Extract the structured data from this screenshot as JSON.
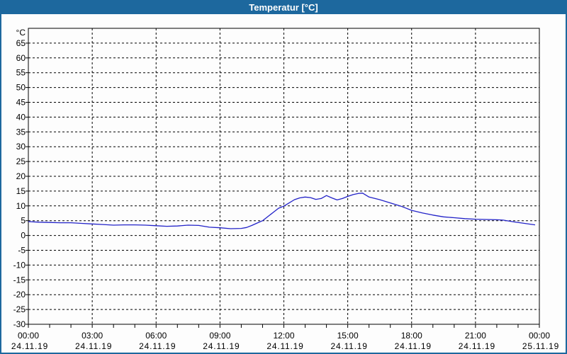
{
  "window": {
    "title": "Temperatur [°C]"
  },
  "colors": {
    "titlebar": "#1d689e",
    "window_border": "#1d689e",
    "plot_border": "#000000",
    "grid": "#000000",
    "line": "#2222c8",
    "background": "#fdfdfd",
    "text": "#000000"
  },
  "chart_data": {
    "type": "line",
    "title": "Temperatur [°C]",
    "y_unit": "°C",
    "ylim": [
      -30,
      70
    ],
    "xlim_hours": [
      0,
      24
    ],
    "grid": "dashed",
    "legend": "none",
    "y_ticks": [
      65,
      60,
      55,
      50,
      45,
      40,
      35,
      30,
      25,
      20,
      15,
      10,
      5,
      0,
      -5,
      -10,
      -15,
      -20,
      -25,
      -30
    ],
    "x_ticks": [
      {
        "hour": 0,
        "time": "00:00",
        "date": "24.11.19"
      },
      {
        "hour": 3,
        "time": "03:00",
        "date": "24.11.19"
      },
      {
        "hour": 6,
        "time": "06:00",
        "date": "24.11.19"
      },
      {
        "hour": 9,
        "time": "09:00",
        "date": "24.11.19"
      },
      {
        "hour": 12,
        "time": "12:00",
        "date": "24.11.19"
      },
      {
        "hour": 15,
        "time": "15:00",
        "date": "24.11.19"
      },
      {
        "hour": 18,
        "time": "18:00",
        "date": "24.11.19"
      },
      {
        "hour": 21,
        "time": "21:00",
        "date": "24.11.19"
      },
      {
        "hour": 24,
        "time": "00:00",
        "date": "25.11.19"
      }
    ],
    "minor_x_tick_every_hours": 1,
    "series": [
      {
        "name": "Temperatur",
        "color": "#2222c8",
        "points": [
          [
            0,
            4.7
          ],
          [
            0.5,
            4.5
          ],
          [
            1,
            4.4
          ],
          [
            1.5,
            4.3
          ],
          [
            2,
            4.3
          ],
          [
            2.5,
            4.1
          ],
          [
            3,
            3.9
          ],
          [
            3.5,
            3.7
          ],
          [
            4,
            3.5
          ],
          [
            4.5,
            3.6
          ],
          [
            5,
            3.6
          ],
          [
            5.5,
            3.5
          ],
          [
            6,
            3.3
          ],
          [
            6.5,
            3.1
          ],
          [
            7,
            3.2
          ],
          [
            7.5,
            3.5
          ],
          [
            8,
            3.4
          ],
          [
            8.5,
            2.8
          ],
          [
            9,
            2.6
          ],
          [
            9.5,
            2.3
          ],
          [
            10,
            2.4
          ],
          [
            10.25,
            2.7
          ],
          [
            10.5,
            3.4
          ],
          [
            10.75,
            4.2
          ],
          [
            11,
            5.0
          ],
          [
            11.5,
            7.8
          ],
          [
            11.75,
            9.2
          ],
          [
            12,
            9.9
          ],
          [
            12.25,
            11.0
          ],
          [
            12.5,
            12.1
          ],
          [
            12.75,
            12.7
          ],
          [
            13,
            13.0
          ],
          [
            13.25,
            12.8
          ],
          [
            13.5,
            12.2
          ],
          [
            13.75,
            12.5
          ],
          [
            14,
            13.5
          ],
          [
            14.25,
            12.7
          ],
          [
            14.5,
            12.0
          ],
          [
            14.75,
            12.5
          ],
          [
            15,
            13.2
          ],
          [
            15.25,
            13.8
          ],
          [
            15.5,
            14.2
          ],
          [
            15.7,
            14.3
          ],
          [
            16,
            13.0
          ],
          [
            16.5,
            12.1
          ],
          [
            17,
            11.0
          ],
          [
            17.5,
            9.9
          ],
          [
            18,
            8.5
          ],
          [
            18.5,
            7.6
          ],
          [
            19,
            6.9
          ],
          [
            19.5,
            6.3
          ],
          [
            20,
            6.0
          ],
          [
            20.5,
            5.7
          ],
          [
            21,
            5.5
          ],
          [
            21.5,
            5.4
          ],
          [
            22,
            5.3
          ],
          [
            22.3,
            5.2
          ],
          [
            22.8,
            4.6
          ],
          [
            23.3,
            4.1
          ],
          [
            23.8,
            3.6
          ]
        ]
      }
    ]
  }
}
